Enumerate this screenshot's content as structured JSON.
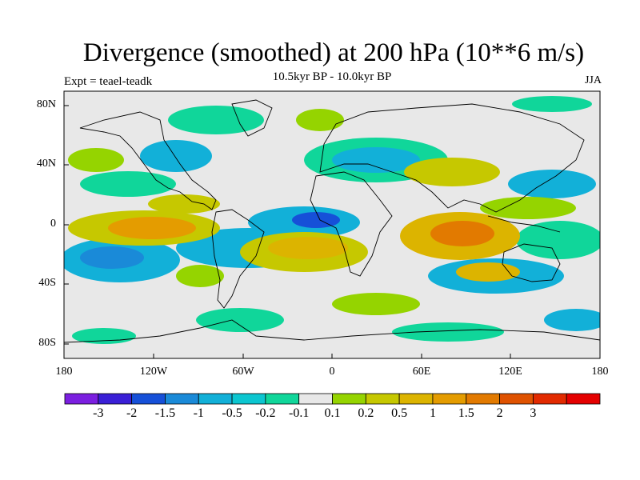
{
  "title": "Divergence (smoothed) at 200 hPa (10**6 m/s)",
  "subtitle": "10.5kyr BP - 10.0kyr BP",
  "experiment_label": "Expt = teael-teadk",
  "season_label": "JJA",
  "lat_ticks": [
    "80N",
    "40N",
    "0",
    "40S",
    "80S"
  ],
  "lon_ticks": [
    "180",
    "120W",
    "60W",
    "0",
    "60E",
    "120E",
    "180"
  ],
  "colorbar": {
    "colors": [
      "#7b1fe0",
      "#3a1fd6",
      "#1650d8",
      "#1a8ad8",
      "#12b0d8",
      "#0cc6d0",
      "#10d69a",
      "#e8e8e8",
      "#95d400",
      "#c6c800",
      "#dcb400",
      "#e49c00",
      "#e27a00",
      "#df5200",
      "#e22a00",
      "#e40000"
    ],
    "labels": [
      "-3",
      "-2",
      "-1.5",
      "-1",
      "-0.5",
      "-0.2",
      "-0.1",
      "0.1",
      "0.2",
      "0.5",
      "1",
      "1.5",
      "2",
      "3"
    ]
  },
  "colors": {
    "background": "#e8e8e8",
    "coast": "#000000"
  }
}
